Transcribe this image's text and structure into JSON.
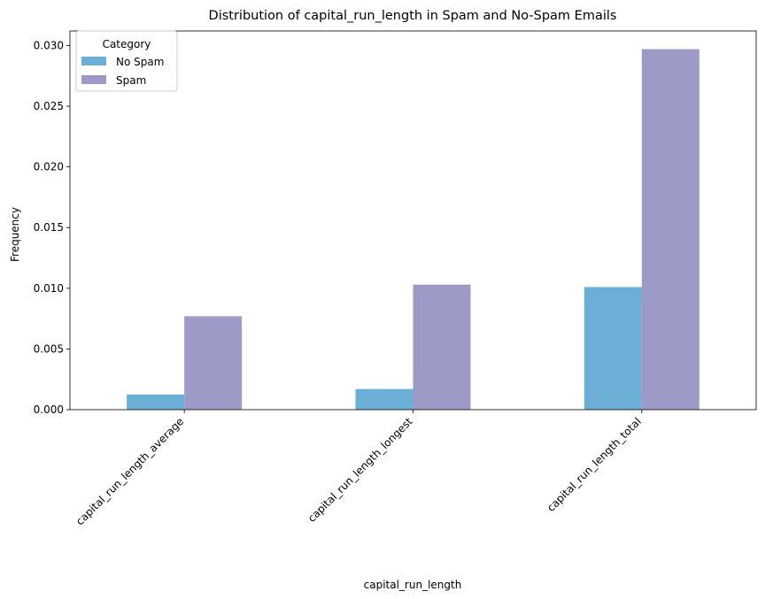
{
  "chart_data": {
    "type": "bar",
    "title": "Distribution of capital_run_length in Spam and No-Spam Emails",
    "xlabel": "capital_run_length",
    "ylabel": "Frequency",
    "categories": [
      "capital_run_length_average",
      "capital_run_length_longest",
      "capital_run_length_total"
    ],
    "series": [
      {
        "name": "No Spam",
        "color": "#6baed6",
        "values": [
          0.00125,
          0.0017,
          0.0101
        ]
      },
      {
        "name": "Spam",
        "color": "#9e9ac8",
        "values": [
          0.0077,
          0.0103,
          0.0297
        ]
      }
    ],
    "ylim": [
      0,
      0.0312
    ],
    "yticks": [
      "0.000",
      "0.005",
      "0.010",
      "0.015",
      "0.020",
      "0.025",
      "0.030"
    ],
    "legend": {
      "title": "Category",
      "position": "top-left"
    },
    "grid": false
  }
}
